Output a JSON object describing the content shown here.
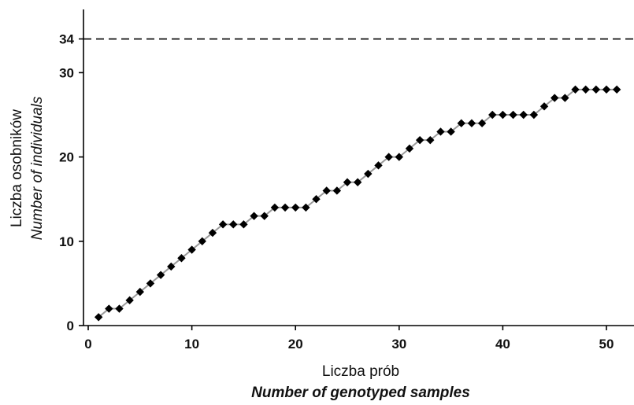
{
  "chart_data": {
    "type": "line",
    "xlabel": "Liczba prób",
    "xlabel_secondary": "Number of genotyped samples",
    "ylabel": "Liczba osobników",
    "ylabel_secondary": "Number of individuals",
    "xlim": [
      0,
      51
    ],
    "ylim": [
      0,
      37
    ],
    "x_ticks": [
      0,
      10,
      20,
      30,
      40,
      50
    ],
    "y_ticks": [
      0,
      10,
      20,
      30
    ],
    "reference_line": {
      "y": 34,
      "label": "34",
      "style": "dashed"
    },
    "grid": false,
    "legend": "none",
    "marker": "diamond",
    "line_color": "#9a9a9a",
    "marker_color": "#000000",
    "series": [
      {
        "x": [
          1,
          2,
          3,
          4,
          5,
          6,
          7,
          8,
          9,
          10,
          11,
          12,
          13,
          14,
          15,
          16,
          17,
          18,
          19,
          20,
          21,
          22,
          23,
          24,
          25,
          26,
          27,
          28,
          29,
          30,
          31,
          32,
          33,
          34,
          35,
          36,
          37,
          38,
          39,
          40,
          41,
          42,
          43,
          44,
          45,
          46,
          47,
          48,
          49,
          50,
          51
        ],
        "values": [
          1,
          2,
          2,
          3,
          4,
          5,
          6,
          7,
          8,
          9,
          10,
          11,
          12,
          12,
          12,
          13,
          13,
          14,
          14,
          14,
          14,
          15,
          16,
          16,
          17,
          17,
          18,
          19,
          20,
          20,
          21,
          22,
          22,
          23,
          23,
          24,
          24,
          24,
          25,
          25,
          25,
          25,
          25,
          26,
          27,
          27,
          28,
          28,
          28,
          28,
          28
        ]
      }
    ]
  }
}
